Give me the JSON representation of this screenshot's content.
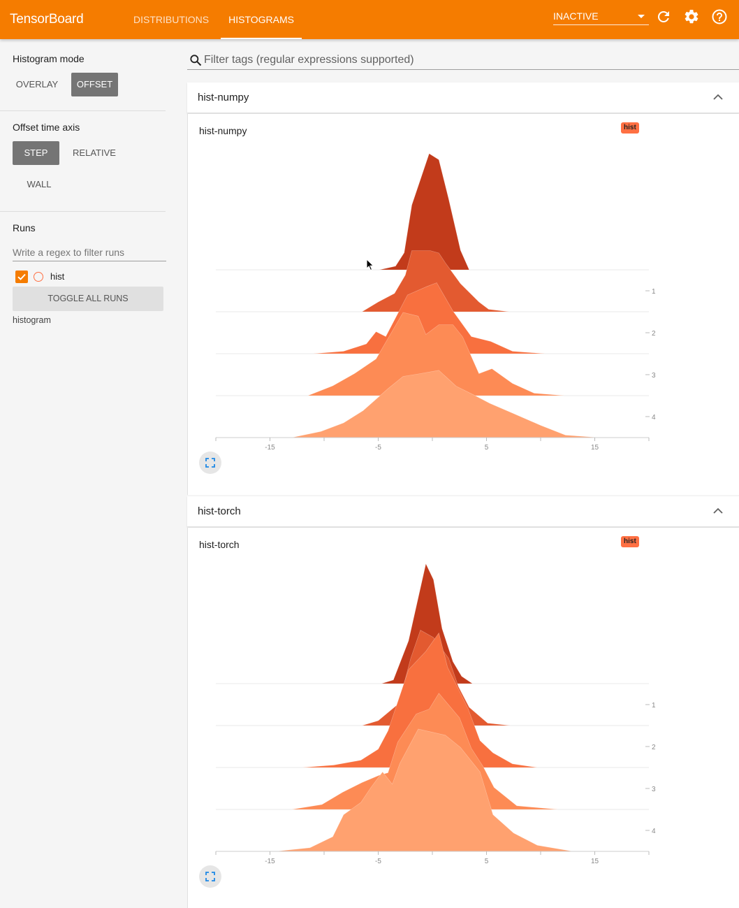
{
  "app": {
    "title": "TensorBoard",
    "tabs": [
      {
        "label": "DISTRIBUTIONS",
        "active": false
      },
      {
        "label": "HISTOGRAMS",
        "active": true
      }
    ],
    "status_select": {
      "selected": "INACTIVE"
    },
    "icons": [
      "refresh-icon",
      "settings-icon",
      "help-icon"
    ],
    "accent_color": "#f57c00"
  },
  "sidebar": {
    "histogram_mode": {
      "label": "Histogram mode",
      "options": [
        "OVERLAY",
        "OFFSET"
      ],
      "selected": "OFFSET"
    },
    "offset_axis": {
      "label": "Offset time axis",
      "options": [
        "STEP",
        "RELATIVE",
        "WALL"
      ],
      "selected": "STEP"
    },
    "runs": {
      "label": "Runs",
      "filter_placeholder": "Write a regex to filter runs",
      "items": [
        {
          "name": "hist",
          "checked": true,
          "color": "#ff7043"
        }
      ],
      "toggle_label": "TOGGLE ALL RUNS",
      "logdir": "histogram"
    }
  },
  "main": {
    "filter_placeholder": "Filter tags (regular expressions supported)",
    "cards": [
      {
        "header": "hist-numpy",
        "chart_title": "hist-numpy",
        "run_badge": "hist"
      },
      {
        "header": "hist-torch",
        "chart_title": "hist-torch",
        "run_badge": "hist"
      }
    ]
  },
  "chart_data": [
    {
      "type": "area",
      "title": "hist-numpy",
      "mode": "offset",
      "x_ticks": [
        -15,
        -5,
        5,
        15
      ],
      "xlim": [
        -20,
        20
      ],
      "step_ticks": [
        1,
        2,
        3,
        4
      ],
      "colors": [
        "#c23b1b",
        "#e35a30",
        "#f8703f",
        "#fd8b55",
        "#ffa16f"
      ],
      "series": [
        {
          "step": 0,
          "x": [
            -4.9,
            -3.4,
            -2.6,
            -1.9,
            -0.3,
            0.6,
            1.5,
            2.6,
            3.4
          ],
          "y": [
            0,
            0.03,
            0.14,
            0.53,
            0.95,
            0.9,
            0.58,
            0.16,
            0
          ]
        },
        {
          "step": 1,
          "x": [
            -6.5,
            -5.0,
            -3.5,
            -2.5,
            -1.9,
            -0.2,
            0.6,
            1.2,
            2.6,
            4.3,
            5.2,
            7.1
          ],
          "y": [
            0,
            0.08,
            0.15,
            0.3,
            0.5,
            0.5,
            0.48,
            0.4,
            0.23,
            0.08,
            0.02,
            0
          ]
        },
        {
          "step": 2,
          "x": [
            -11,
            -8.2,
            -6.1,
            -5.2,
            -4.3,
            -2.3,
            -0.5,
            0.4,
            1.9,
            3.6,
            5.4,
            7.4,
            10.4
          ],
          "y": [
            0,
            0.02,
            0.08,
            0.18,
            0.14,
            0.48,
            0.55,
            0.58,
            0.35,
            0.14,
            0.1,
            0.02,
            0
          ]
        },
        {
          "step": 3,
          "x": [
            -11.5,
            -9.2,
            -7.2,
            -5.2,
            -2.7,
            -1.3,
            -0.6,
            0.6,
            1.9,
            2.8,
            4.3,
            5.5,
            7.4,
            9.4,
            12.2
          ],
          "y": [
            0,
            0.08,
            0.18,
            0.3,
            0.68,
            0.65,
            0.5,
            0.58,
            0.58,
            0.48,
            0.18,
            0.22,
            0.1,
            0.02,
            0
          ]
        },
        {
          "step": 4,
          "x": [
            -13,
            -10.3,
            -8.2,
            -6.4,
            -4.1,
            -2.7,
            -1.3,
            0.6,
            2.2,
            3.8,
            5.3,
            7.4,
            10,
            12.3,
            15.4
          ],
          "y": [
            0,
            0.05,
            0.12,
            0.22,
            0.4,
            0.5,
            0.52,
            0.55,
            0.42,
            0.35,
            0.28,
            0.2,
            0.1,
            0.02,
            0
          ]
        }
      ]
    },
    {
      "type": "area",
      "title": "hist-torch",
      "mode": "offset",
      "x_ticks": [
        -15,
        -5,
        5,
        15
      ],
      "xlim": [
        -20,
        20
      ],
      "step_ticks": [
        1,
        2,
        3,
        4
      ],
      "colors": [
        "#c23b1b",
        "#e35a30",
        "#f8703f",
        "#fd8b55",
        "#ffa16f"
      ],
      "series": [
        {
          "step": 0,
          "x": [
            -4.7,
            -3.6,
            -2.2,
            -0.6,
            0.1,
            0.9,
            1.9,
            2.7,
            3.7
          ],
          "y": [
            0,
            0.03,
            0.35,
            0.98,
            0.85,
            0.45,
            0.18,
            0.06,
            0
          ]
        },
        {
          "step": 1,
          "x": [
            -6.5,
            -5.0,
            -3.1,
            -2.0,
            -1.1,
            0.1,
            1.5,
            2.4,
            3.4,
            5.1,
            7.2
          ],
          "y": [
            0,
            0.04,
            0.18,
            0.55,
            0.78,
            0.72,
            0.55,
            0.32,
            0.15,
            0.02,
            0
          ]
        },
        {
          "step": 2,
          "x": [
            -12,
            -9.1,
            -6.6,
            -5.0,
            -4.1,
            -2.2,
            -0.6,
            0.6,
            1.4,
            3.3,
            4.4,
            5.6,
            7.4,
            9.7
          ],
          "y": [
            0,
            0.02,
            0.06,
            0.15,
            0.3,
            0.8,
            0.95,
            1.1,
            0.82,
            0.48,
            0.22,
            0.12,
            0.03,
            0
          ]
        },
        {
          "step": 3,
          "x": [
            -13,
            -10.2,
            -8.3,
            -6.5,
            -4.9,
            -4.1,
            -3.2,
            -1.5,
            -0.3,
            0.6,
            2.5,
            3.6,
            4.7,
            5.7,
            7.8,
            11.6
          ],
          "y": [
            0,
            0.04,
            0.14,
            0.22,
            0.28,
            0.3,
            0.55,
            0.78,
            0.82,
            0.95,
            0.75,
            0.5,
            0.35,
            0.18,
            0.03,
            0
          ]
        },
        {
          "step": 4,
          "x": [
            -14.5,
            -11.3,
            -9.2,
            -8.2,
            -6.6,
            -5.7,
            -4.6,
            -3.7,
            -3.0,
            -1.3,
            1.2,
            2.6,
            4.4,
            5.6,
            7.5,
            9.7,
            13
          ],
          "y": [
            0,
            0.03,
            0.12,
            0.3,
            0.4,
            0.52,
            0.65,
            0.55,
            0.72,
            1.0,
            0.95,
            0.85,
            0.65,
            0.3,
            0.15,
            0.05,
            0
          ]
        }
      ]
    }
  ]
}
